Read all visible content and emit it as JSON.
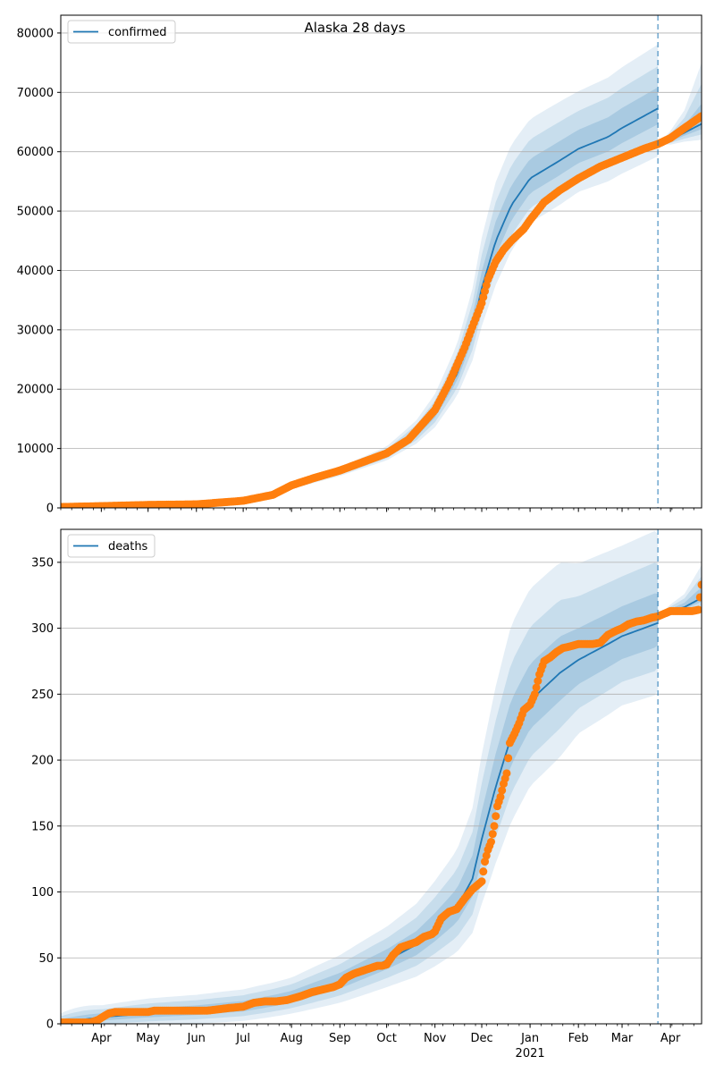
{
  "chart_data": {
    "type": "line",
    "title": "Alaska 28 days",
    "x_range": [
      "2020-03-06",
      "2021-04-21"
    ],
    "x_tick_labels": [
      "Apr",
      "May",
      "Jun",
      "Jul",
      "Aug",
      "Sep",
      "Oct",
      "Nov",
      "Dec",
      "Jan",
      "Feb",
      "Mar",
      "Apr"
    ],
    "x_year_label": "2021",
    "forecast_start": "2021-03-24",
    "colors": {
      "model": "#1f77b4",
      "observed": "#ff7f0e",
      "band": "#1f77b4",
      "grid": "#b0b0b0"
    },
    "panels": [
      {
        "key": "confirmed",
        "legend": "confirmed",
        "ylim": [
          0,
          83000
        ],
        "yticks": [
          "0",
          "10000",
          "20000",
          "30000",
          "40000",
          "50000",
          "60000",
          "70000",
          "80000"
        ],
        "grid": true,
        "legend_loc": "upper left",
        "model": {
          "x": [
            "2020-03-06",
            "2020-04-01",
            "2020-05-01",
            "2020-06-01",
            "2020-07-01",
            "2020-07-20",
            "2020-08-01",
            "2020-09-01",
            "2020-10-01",
            "2020-10-20",
            "2020-11-01",
            "2020-11-15",
            "2020-11-25",
            "2020-12-01",
            "2020-12-10",
            "2020-12-20",
            "2021-01-01",
            "2021-01-20",
            "2021-02-01",
            "2021-02-20",
            "2021-03-01",
            "2021-03-24"
          ],
          "y": [
            200,
            300,
            500,
            600,
            1100,
            2000,
            3500,
            6000,
            9000,
            12500,
            16000,
            22500,
            30000,
            37000,
            45000,
            51000,
            55500,
            58500,
            60500,
            62500,
            64000,
            67300
          ],
          "band_rel": [
            0.05,
            0.05,
            0.06,
            0.06,
            0.08,
            0.1,
            0.12,
            0.14,
            0.15,
            0.18,
            0.2,
            0.22,
            0.23,
            0.23,
            0.22,
            0.2,
            0.18,
            0.17,
            0.16,
            0.16,
            0.16,
            0.16
          ]
        },
        "forecast": {
          "x": [
            "2021-03-24",
            "2021-04-01",
            "2021-04-10",
            "2021-04-21"
          ],
          "y": [
            61300,
            62000,
            63200,
            64700
          ],
          "upper": [
            61300,
            63500,
            67000,
            75000
          ],
          "lower": [
            61300,
            61200,
            61700,
            62000
          ]
        },
        "observed_anchors": {
          "x": [
            "2020-03-06",
            "2020-04-01",
            "2020-05-01",
            "2020-06-01",
            "2020-07-01",
            "2020-07-20",
            "2020-08-01",
            "2020-08-15",
            "2020-09-01",
            "2020-10-01",
            "2020-10-15",
            "2020-11-01",
            "2020-11-10",
            "2020-11-20",
            "2020-11-25",
            "2020-12-01",
            "2020-12-05",
            "2020-12-10",
            "2020-12-15",
            "2020-12-20",
            "2020-12-28",
            "2021-01-01",
            "2021-01-10",
            "2021-01-20",
            "2021-02-01",
            "2021-02-15",
            "2021-03-01",
            "2021-03-15",
            "2021-03-24",
            "2021-04-01",
            "2021-04-10",
            "2021-04-21"
          ],
          "y": [
            150,
            300,
            500,
            600,
            1200,
            2200,
            3800,
            5000,
            6300,
            9200,
            11500,
            16500,
            21000,
            27000,
            30500,
            34500,
            38500,
            41500,
            43500,
            45000,
            47000,
            48500,
            51500,
            53500,
            55500,
            57500,
            59000,
            60500,
            61300,
            62300,
            64000,
            66000
          ]
        },
        "observed_step_days": 1
      },
      {
        "key": "deaths",
        "legend": "deaths",
        "ylim": [
          0,
          375
        ],
        "yticks": [
          "0",
          "50",
          "100",
          "150",
          "200",
          "250",
          "300",
          "350"
        ],
        "grid": true,
        "legend_loc": "upper left",
        "model": {
          "x": [
            "2020-03-06",
            "2020-04-01",
            "2020-05-01",
            "2020-06-01",
            "2020-07-01",
            "2020-07-20",
            "2020-08-01",
            "2020-09-01",
            "2020-10-01",
            "2020-10-20",
            "2020-11-01",
            "2020-11-15",
            "2020-11-25",
            "2020-12-01",
            "2020-12-10",
            "2020-12-20",
            "2021-01-01",
            "2021-01-20",
            "2021-02-01",
            "2021-02-20",
            "2021-03-01",
            "2021-03-24"
          ],
          "y": [
            1,
            5,
            8,
            10,
            13,
            17,
            20,
            32,
            48,
            60,
            72,
            88,
            110,
            140,
            180,
            218,
            245,
            266,
            276,
            288,
            294,
            304
          ],
          "band_rel": [
            3,
            1.0,
            0.9,
            0.8,
            0.7,
            0.6,
            0.55,
            0.5,
            0.45,
            0.45,
            0.45,
            0.45,
            0.45,
            0.43,
            0.4,
            0.37,
            0.33,
            0.3,
            0.25,
            0.23,
            0.22,
            0.22
          ]
        },
        "forecast": {
          "x": [
            "2021-03-24",
            "2021-04-01",
            "2021-04-10",
            "2021-04-21"
          ],
          "y": [
            309,
            313,
            316,
            323
          ],
          "upper": [
            309,
            318,
            326,
            348
          ],
          "lower": [
            309,
            310,
            312,
            314
          ]
        },
        "observed_points": {
          "x": [
            "2020-03-06",
            "2020-03-12",
            "2020-03-18",
            "2020-03-25",
            "2020-03-30",
            "2020-04-03",
            "2020-04-06",
            "2020-04-10",
            "2020-04-14",
            "2020-04-18",
            "2020-04-22",
            "2020-04-26",
            "2020-05-01",
            "2020-05-05",
            "2020-05-10",
            "2020-05-15",
            "2020-05-20",
            "2020-05-25",
            "2020-06-01",
            "2020-06-08",
            "2020-06-15",
            "2020-06-22",
            "2020-07-01",
            "2020-07-08",
            "2020-07-15",
            "2020-07-22",
            "2020-07-29",
            "2020-08-01",
            "2020-08-07",
            "2020-08-14",
            "2020-08-21",
            "2020-08-28",
            "2020-09-01",
            "2020-09-05",
            "2020-09-10",
            "2020-09-15",
            "2020-09-20",
            "2020-09-25",
            "2020-09-28",
            "2020-10-01",
            "2020-10-05",
            "2020-10-10",
            "2020-10-15",
            "2020-10-20",
            "2020-10-25",
            "2020-10-30",
            "2020-11-01",
            "2020-11-05",
            "2020-11-10",
            "2020-11-15",
            "2020-11-20",
            "2020-11-25",
            "2020-11-28",
            "2020-12-01",
            "2020-12-03",
            "2020-12-05",
            "2020-12-07",
            "2020-12-09",
            "2020-12-11",
            "2020-12-13",
            "2020-12-15",
            "2020-12-17",
            "2020-12-19",
            "2020-12-22",
            "2020-12-25",
            "2020-12-28",
            "2021-01-01",
            "2021-01-04",
            "2021-01-07",
            "2021-01-10",
            "2021-01-14",
            "2021-01-18",
            "2021-01-22",
            "2021-01-26",
            "2021-02-01",
            "2021-02-05",
            "2021-02-10",
            "2021-02-15",
            "2021-02-20",
            "2021-02-25",
            "2021-03-01",
            "2021-03-05",
            "2021-03-10",
            "2021-03-15",
            "2021-03-20",
            "2021-03-24",
            "2021-03-28",
            "2021-04-01",
            "2021-04-05",
            "2021-04-10",
            "2021-04-15",
            "2021-04-19",
            "2021-04-21"
          ],
          "y": [
            1,
            1,
            1,
            1,
            3,
            6,
            8,
            9,
            9,
            9,
            9,
            9,
            9,
            10,
            10,
            10,
            10,
            10,
            10,
            10,
            11,
            12,
            13,
            16,
            17,
            17,
            18,
            19,
            21,
            24,
            26,
            28,
            30,
            35,
            38,
            40,
            42,
            44,
            44,
            45,
            52,
            58,
            60,
            62,
            66,
            68,
            70,
            80,
            85,
            87,
            95,
            102,
            105,
            108,
            123,
            132,
            138,
            150,
            165,
            172,
            182,
            190,
            213,
            220,
            228,
            238,
            242,
            250,
            265,
            275,
            278,
            282,
            285,
            286,
            288,
            288,
            288,
            289,
            295,
            298,
            300,
            303,
            305,
            306,
            308,
            309,
            311,
            313,
            313,
            313,
            313,
            314,
            333
          ]
        }
      }
    ]
  }
}
